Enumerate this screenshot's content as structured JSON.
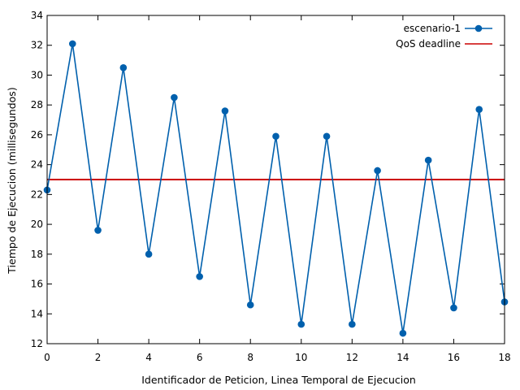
{
  "chart_data": {
    "type": "line",
    "xlabel": "Identificador de Peticion, Linea Temporal de Ejecucion",
    "ylabel": "Tiempo de Ejecucion (millisegundos)",
    "xlim": [
      0,
      18
    ],
    "ylim": [
      12,
      34
    ],
    "xticks": [
      0,
      2,
      4,
      6,
      8,
      10,
      12,
      14,
      16,
      18
    ],
    "yticks": [
      12,
      14,
      16,
      18,
      20,
      22,
      24,
      26,
      28,
      30,
      32,
      34
    ],
    "grid": false,
    "legend_position": "top-right",
    "series": [
      {
        "name": "escenario-1",
        "color": "#0060ad",
        "marker": "circle",
        "x": [
          0,
          1,
          2,
          3,
          4,
          5,
          6,
          7,
          8,
          9,
          10,
          11,
          12,
          13,
          14,
          15,
          16,
          17,
          18
        ],
        "values": [
          22.3,
          32.1,
          19.6,
          30.5,
          18.0,
          28.5,
          16.5,
          27.6,
          14.6,
          25.9,
          13.3,
          25.9,
          13.3,
          23.6,
          12.7,
          24.3,
          14.4,
          27.7,
          14.8
        ]
      }
    ],
    "reference_lines": [
      {
        "name": "QoS deadline",
        "color": "#cc0000",
        "y": 23
      }
    ]
  }
}
